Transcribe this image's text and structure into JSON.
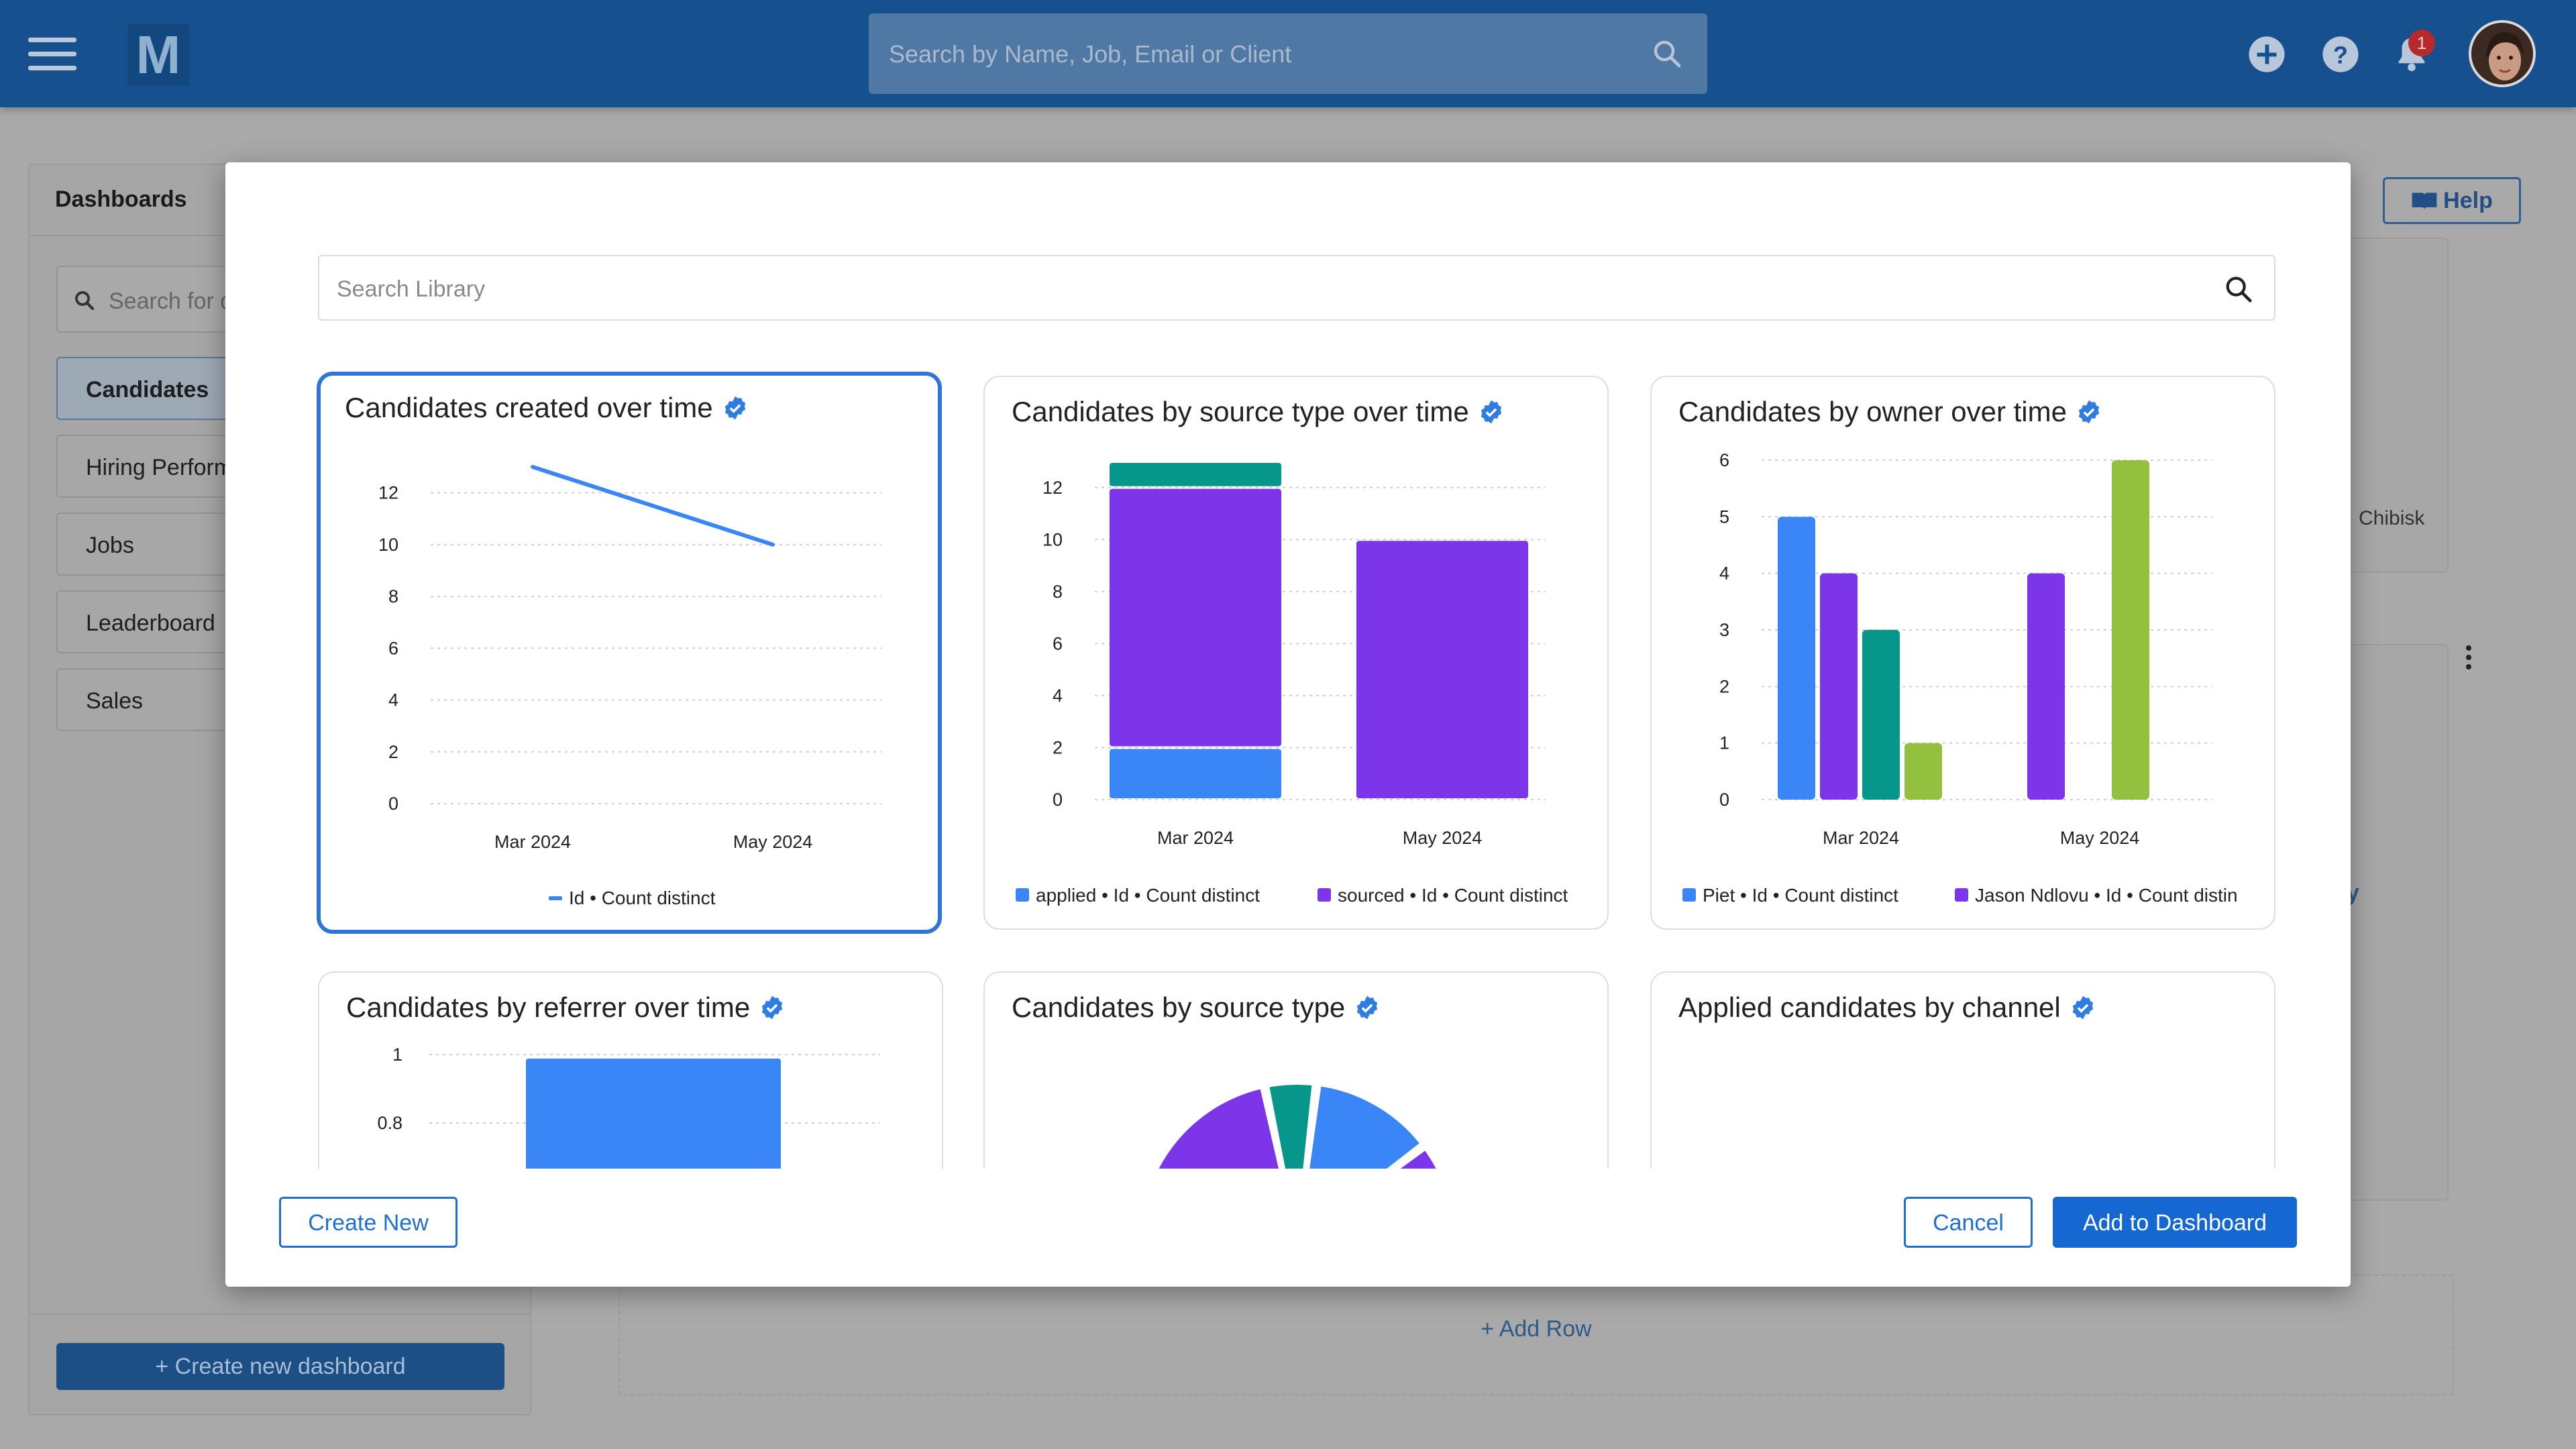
{
  "topbar": {
    "logo_letter": "M",
    "search_placeholder": "Search by Name, Job, Email or Client",
    "notification_count": "1"
  },
  "sidebar": {
    "title": "Dashboards",
    "search_placeholder": "Search for d",
    "items": [
      {
        "label": "Candidates",
        "active": true
      },
      {
        "label": "Hiring Performance"
      },
      {
        "label": "Jobs"
      },
      {
        "label": "Leaderboard"
      },
      {
        "label": "Sales"
      }
    ],
    "create_label": "+  Create new dashboard"
  },
  "background": {
    "help_label": "Help",
    "card_text_a": "Chibisk",
    "card_text_b": "y",
    "add_row_label": "+ Add Row"
  },
  "modal": {
    "search_placeholder": "Search Library",
    "create_new_label": "Create New",
    "cancel_label": "Cancel",
    "add_label": "Add to Dashboard"
  },
  "colors": {
    "accent": "#1568d1",
    "blue": "#3b86f7",
    "purple": "#7c35e8",
    "teal": "#07978a",
    "green": "#93c13f"
  },
  "chart_data": [
    {
      "type": "line",
      "title": "Candidates created over time",
      "categories": [
        "Mar 2024",
        "May 2024"
      ],
      "series": [
        {
          "name": "Id • Count distinct",
          "values": [
            13,
            10
          ]
        }
      ],
      "yticks": [
        0,
        2,
        4,
        6,
        8,
        10,
        12
      ],
      "ylim": [
        0,
        13
      ]
    },
    {
      "type": "bar",
      "stacked": true,
      "title": "Candidates by source type over time",
      "categories": [
        "Mar 2024",
        "May 2024"
      ],
      "series": [
        {
          "name": "applied • Id • Count distinct",
          "values": [
            2,
            0
          ]
        },
        {
          "name": "sourced • Id • Count distinct",
          "values": [
            10,
            10
          ]
        },
        {
          "name": "",
          "values": [
            1,
            0
          ]
        }
      ],
      "yticks": [
        0,
        2,
        4,
        6,
        8,
        10,
        12
      ],
      "ylim": [
        0,
        13
      ]
    },
    {
      "type": "bar",
      "title": "Candidates by owner over time",
      "categories": [
        "Mar 2024",
        "May 2024"
      ],
      "series": [
        {
          "name": "Piet • Id • Count distinct",
          "values": [
            5,
            0
          ]
        },
        {
          "name": "Jason Ndlovu • Id • Count distin",
          "values": [
            4,
            4
          ]
        },
        {
          "name": "",
          "values": [
            3,
            0
          ]
        },
        {
          "name": "",
          "values": [
            1,
            6
          ]
        }
      ],
      "yticks": [
        0,
        1,
        2,
        3,
        4,
        5,
        6
      ],
      "ylim": [
        0,
        6
      ]
    },
    {
      "type": "bar",
      "title": "Candidates by referrer over time",
      "categories": [
        ""
      ],
      "series": [
        {
          "name": "",
          "values": [
            1
          ]
        }
      ],
      "yticks": [
        0.8,
        1
      ],
      "ylim": [
        0,
        1
      ]
    },
    {
      "type": "pie",
      "title": "Candidates by source type",
      "slices": [
        {
          "name": "",
          "color": "#7c35e8"
        },
        {
          "name": "",
          "color": "#07978a"
        },
        {
          "name": "",
          "color": "#3b86f7"
        },
        {
          "name": "",
          "color": "#7c35e8"
        }
      ]
    },
    {
      "type": "pie",
      "title": "Applied candidates by channel",
      "slices": [
        {
          "name": "",
          "color": "#3b86f7"
        }
      ]
    }
  ]
}
